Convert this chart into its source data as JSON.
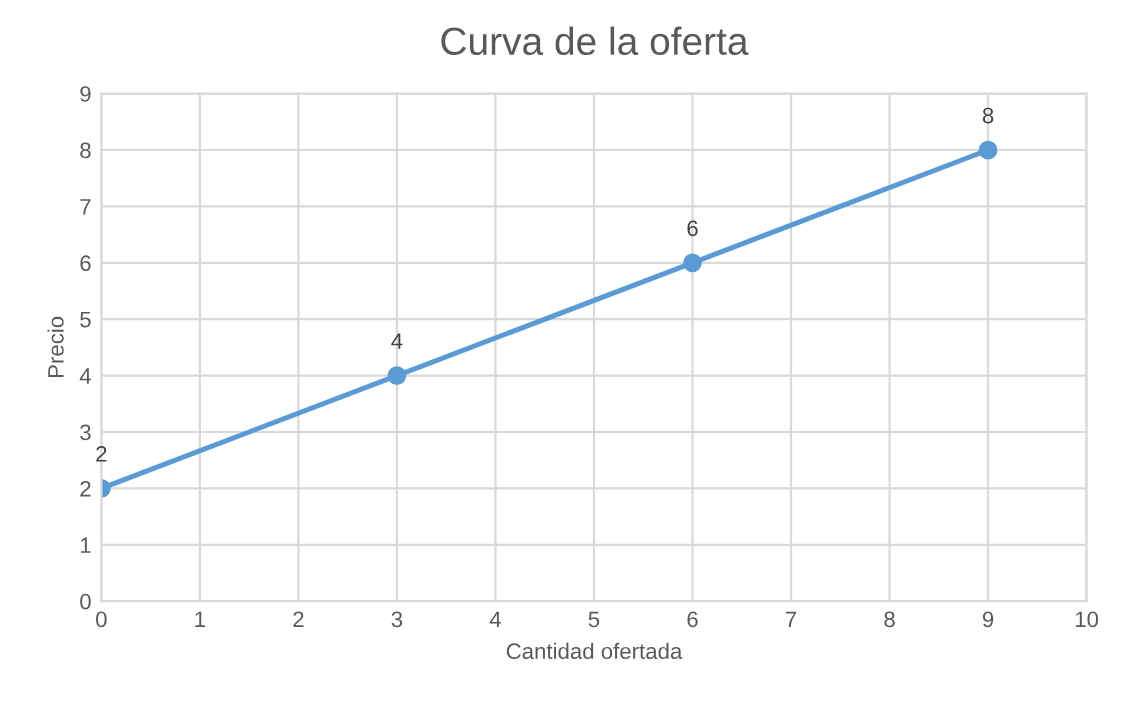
{
  "chart_data": {
    "type": "line",
    "title": "Curva de la oferta",
    "xlabel": "Cantidad ofertada",
    "ylabel": "Precio",
    "x": [
      0,
      3,
      6,
      9
    ],
    "series": [
      {
        "color": "#5b9bd5",
        "values": [
          2,
          4,
          6,
          8
        ]
      }
    ],
    "xlim": [
      0,
      10
    ],
    "xticks": [
      0,
      1,
      2,
      3,
      4,
      5,
      6,
      7,
      8,
      9,
      10
    ],
    "ylim": [
      0,
      9
    ],
    "yticks": [
      0,
      1,
      2,
      3,
      4,
      5,
      6,
      7,
      8,
      9
    ],
    "grid": true,
    "marker": "circle",
    "line_style": "solid",
    "data_labels": true
  }
}
